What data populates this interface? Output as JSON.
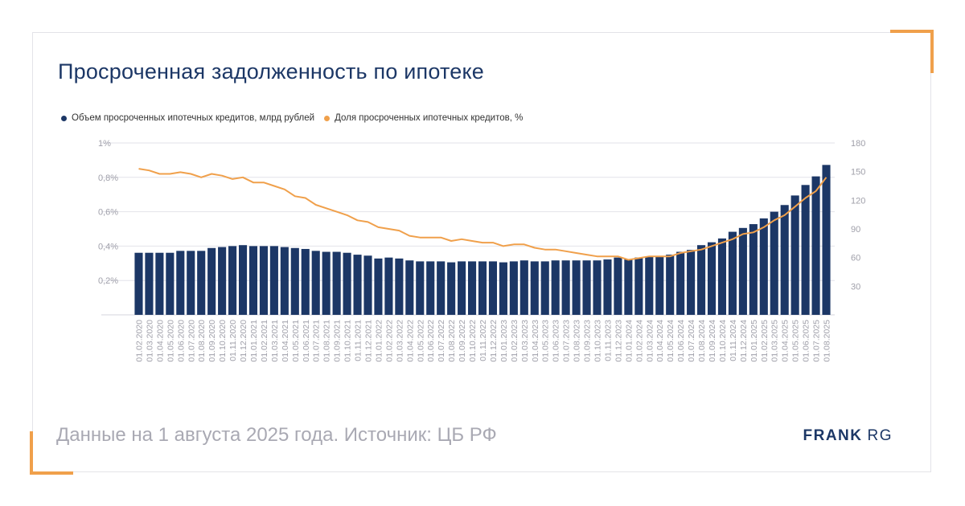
{
  "header": {
    "title": "Просроченная задолженность по ипотеке"
  },
  "footer": {
    "source": "Данные на 1 августа 2025 года. Источник: ЦБ РФ"
  },
  "brand": {
    "part1": "FRANK",
    "part2": "RG"
  },
  "colors": {
    "bar": "#1c3766",
    "line": "#f0a04b",
    "accent": "#f0a04b",
    "grid": "#e2e2ea"
  },
  "chart_data": {
    "type": "bar",
    "title": "Просроченная задолженность по ипотеке",
    "grid": true,
    "legend_position": "top-left",
    "categories": [
      "01.02.2020",
      "01.03.2020",
      "01.04.2020",
      "01.05.2020",
      "01.06.2020",
      "01.07.2020",
      "01.08.2020",
      "01.09.2020",
      "01.10.2020",
      "01.11.2020",
      "01.12.2020",
      "01.01.2021",
      "01.02.2021",
      "01.03.2021",
      "01.04.2021",
      "01.05.2021",
      "01.06.2021",
      "01.07.2021",
      "01.08.2021",
      "01.09.2021",
      "01.10.2021",
      "01.11.2021",
      "01.12.2021",
      "01.01.2022",
      "01.02.2022",
      "01.03.2022",
      "01.04.2022",
      "01.05.2022",
      "01.06.2022",
      "01.07.2022",
      "01.08.2022",
      "01.09.2022",
      "01.10.2022",
      "01.11.2022",
      "01.12.2022",
      "01.01.2023",
      "01.02.2023",
      "01.03.2023",
      "01.04.2023",
      "01.05.2023",
      "01.06.2023",
      "01.07.2023",
      "01.08.2023",
      "01.09.2023",
      "01.10.2023",
      "01.11.2023",
      "01.12.2023",
      "01.01.2024",
      "01.02.2024",
      "01.03.2024",
      "01.04.2024",
      "01.05.2024",
      "01.06.2024",
      "01.07.2024",
      "01.08.2024",
      "01.09.2024",
      "01.10.2024",
      "01.11.2024",
      "01.12.2024",
      "01.01.2025",
      "01.02.2025",
      "01.03.2025",
      "01.04.2025",
      "01.05.2025",
      "01.06.2025",
      "01.07.2025",
      "01.08.2025"
    ],
    "series": [
      {
        "name": "Объем просроченных ипотечных кредитов, млрд рублей",
        "type": "bar",
        "axis": "right",
        "values": [
          65,
          65,
          65,
          65,
          67,
          67,
          67,
          70,
          71,
          72,
          73,
          72,
          72,
          72,
          71,
          70,
          69,
          67,
          66,
          66,
          65,
          63,
          62,
          59,
          60,
          59,
          57,
          56,
          56,
          56,
          55,
          56,
          56,
          56,
          56,
          55,
          56,
          57,
          56,
          56,
          57,
          57,
          57,
          57,
          57,
          58,
          60,
          58,
          60,
          61,
          61,
          63,
          66,
          68,
          73,
          76,
          80,
          87,
          91,
          95,
          101,
          108,
          115,
          125,
          136,
          145,
          157
        ]
      },
      {
        "name": "Доля просроченных ипотечных кредитов, %",
        "type": "line",
        "axis": "left",
        "values": [
          0.85,
          0.84,
          0.82,
          0.82,
          0.83,
          0.82,
          0.8,
          0.82,
          0.81,
          0.79,
          0.8,
          0.77,
          0.77,
          0.75,
          0.73,
          0.69,
          0.68,
          0.64,
          0.62,
          0.6,
          0.58,
          0.55,
          0.54,
          0.51,
          0.5,
          0.49,
          0.46,
          0.45,
          0.45,
          0.45,
          0.43,
          0.44,
          0.43,
          0.42,
          0.42,
          0.4,
          0.41,
          0.41,
          0.39,
          0.38,
          0.38,
          0.37,
          0.36,
          0.35,
          0.34,
          0.34,
          0.34,
          0.32,
          0.33,
          0.34,
          0.34,
          0.34,
          0.36,
          0.37,
          0.38,
          0.4,
          0.42,
          0.44,
          0.47,
          0.48,
          0.51,
          0.55,
          0.58,
          0.63,
          0.68,
          0.72,
          0.8
        ]
      }
    ],
    "y_left": {
      "min": 0,
      "max": 1.0,
      "ticks": [
        {
          "v": 0.2,
          "label": "0,2%"
        },
        {
          "v": 0.4,
          "label": "0,4%"
        },
        {
          "v": 0.6,
          "label": "0,6%"
        },
        {
          "v": 0.8,
          "label": "0,8%"
        },
        {
          "v": 1.0,
          "label": "1%"
        }
      ]
    },
    "y_right": {
      "min": 0,
      "max": 180,
      "ticks": [
        {
          "v": 30,
          "label": "30"
        },
        {
          "v": 60,
          "label": "60"
        },
        {
          "v": 90,
          "label": "90"
        },
        {
          "v": 120,
          "label": "120"
        },
        {
          "v": 150,
          "label": "150"
        },
        {
          "v": 180,
          "label": "180"
        }
      ]
    }
  }
}
